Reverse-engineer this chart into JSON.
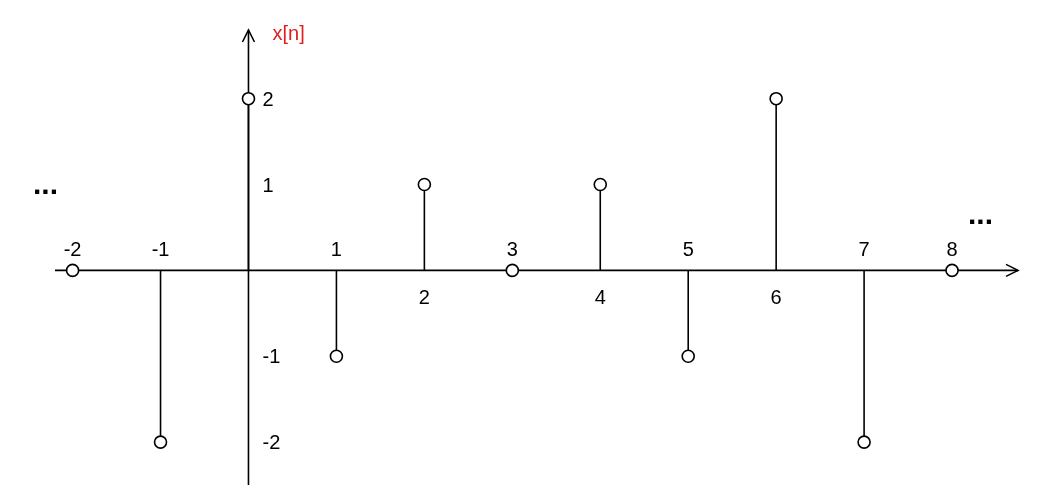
{
  "chart_data": {
    "type": "lollipop",
    "ylabel": "x[n]",
    "x": [
      -2,
      -1,
      0,
      1,
      2,
      3,
      4,
      5,
      6,
      7,
      8
    ],
    "series": [
      {
        "color": "#000000",
        "values": [
          0,
          -2,
          2,
          -1,
          1,
          0,
          1,
          -1,
          2,
          -2,
          0
        ]
      }
    ],
    "xlim": [
      -2.2,
      8.75
    ],
    "ylim": [
      -2.5,
      2.8
    ],
    "xticks": [
      2,
      4,
      6
    ],
    "x2lim": [
      -2.2,
      8.75
    ],
    "x2ticks": [
      -2,
      -1,
      1,
      3,
      5,
      7,
      8
    ],
    "yticks": [
      -2,
      -1,
      1,
      2
    ],
    "marker": "circle",
    "annotations": [
      "...",
      "..."
    ]
  }
}
